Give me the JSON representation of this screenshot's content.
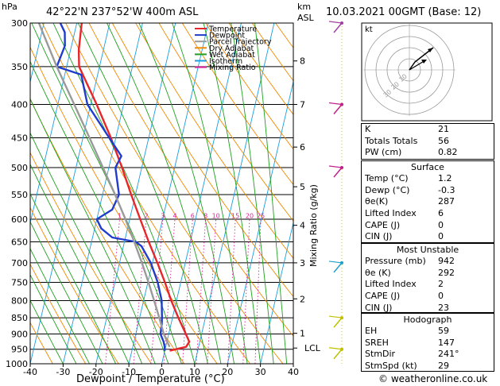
{
  "header": {
    "left_axis_unit": "hPa",
    "location": "42°22'N  237°52'W  400m  ASL",
    "km_label": "km",
    "asl_label": "ASL",
    "datetime": "10.03.2021  00GMT  (Base: 12)"
  },
  "footer": {
    "credit": "© weatheronline.co.uk"
  },
  "hodograph": {
    "unit": "kt",
    "ring_labels": [
      "10",
      "20",
      "30"
    ]
  },
  "chart_data": {
    "type": "line",
    "title": "",
    "xlabel": "Dewpoint / Temperature (°C)",
    "ylabel": "",
    "right_label": "Mixing Ratio (g/kg)",
    "xlim": [
      -40,
      40
    ],
    "x_ticks": [
      -40,
      -30,
      -20,
      -10,
      0,
      10,
      20,
      30,
      40
    ],
    "pressure_levels": [
      300,
      350,
      400,
      450,
      500,
      550,
      600,
      650,
      700,
      750,
      800,
      850,
      900,
      950,
      1000
    ],
    "km_ticks": [
      {
        "km": "8",
        "p": 343
      },
      {
        "km": "7",
        "p": 400
      },
      {
        "km": "6",
        "p": 465
      },
      {
        "km": "5",
        "p": 535
      },
      {
        "km": "4",
        "p": 613
      },
      {
        "km": "3",
        "p": 700
      },
      {
        "km": "2",
        "p": 795
      },
      {
        "km": "1",
        "p": 898
      }
    ],
    "lcl": {
      "label": "LCL",
      "p": 946
    },
    "mixing_ratio_labels": [
      "1",
      "2",
      "3",
      "4",
      "6",
      "8",
      "10",
      "15",
      "20",
      "25"
    ],
    "mixing_ratio_values": [
      1,
      2,
      3,
      4,
      6,
      8,
      10,
      15,
      20,
      25
    ],
    "legend": [
      {
        "name": "Temperature",
        "color": "#e8262a"
      },
      {
        "name": "Dewpoint",
        "color": "#1f3ccc"
      },
      {
        "name": "Parcel Trajectory",
        "color": "#9a9a9a"
      },
      {
        "name": "Dry Adiabat",
        "color": "#f08a00"
      },
      {
        "name": "Wet Adiabat",
        "color": "#1fa01f"
      },
      {
        "name": "Isotherm",
        "color": "#1a9ee0"
      },
      {
        "name": "Mixing Ratio",
        "color": "#e0209a"
      }
    ],
    "series": [
      {
        "name": "Temperature",
        "color": "#e8262a",
        "points": [
          {
            "p": 955,
            "t": 1.5
          },
          {
            "p": 942,
            "t": 6.2
          },
          {
            "p": 925,
            "t": 6.8
          },
          {
            "p": 900,
            "t": 5.2
          },
          {
            "p": 850,
            "t": 1.8
          },
          {
            "p": 800,
            "t": -1.6
          },
          {
            "p": 750,
            "t": -4.8
          },
          {
            "p": 700,
            "t": -8.5
          },
          {
            "p": 650,
            "t": -12.6
          },
          {
            "p": 600,
            "t": -16.8
          },
          {
            "p": 550,
            "t": -21.3
          },
          {
            "p": 500,
            "t": -26.0
          },
          {
            "p": 450,
            "t": -31.5
          },
          {
            "p": 400,
            "t": -38.2
          },
          {
            "p": 350,
            "t": -46.2
          },
          {
            "p": 330,
            "t": -47.5
          },
          {
            "p": 300,
            "t": -48.5
          }
        ]
      },
      {
        "name": "Dewpoint",
        "color": "#1f3ccc",
        "points": [
          {
            "p": 955,
            "t": 0.0
          },
          {
            "p": 942,
            "t": -0.3
          },
          {
            "p": 925,
            "t": -1.0
          },
          {
            "p": 900,
            "t": -2.5
          },
          {
            "p": 870,
            "t": -2.8
          },
          {
            "p": 850,
            "t": -3.2
          },
          {
            "p": 800,
            "t": -4.5
          },
          {
            "p": 750,
            "t": -7.0
          },
          {
            "p": 700,
            "t": -10.5
          },
          {
            "p": 660,
            "t": -14.5
          },
          {
            "p": 650,
            "t": -16.5
          },
          {
            "p": 640,
            "t": -24.0
          },
          {
            "p": 620,
            "t": -28.0
          },
          {
            "p": 600,
            "t": -30.0
          },
          {
            "p": 580,
            "t": -26.0
          },
          {
            "p": 550,
            "t": -25.0
          },
          {
            "p": 500,
            "t": -28.0
          },
          {
            "p": 480,
            "t": -27.0
          },
          {
            "p": 450,
            "t": -32.0
          },
          {
            "p": 400,
            "t": -41.0
          },
          {
            "p": 360,
            "t": -45.0
          },
          {
            "p": 350,
            "t": -53.0
          },
          {
            "p": 325,
            "t": -52.0
          },
          {
            "p": 310,
            "t": -53.0
          },
          {
            "p": 300,
            "t": -55.0
          }
        ]
      },
      {
        "name": "Parcel Trajectory",
        "color": "#9a9a9a",
        "points": [
          {
            "p": 942,
            "t": 1.2
          },
          {
            "p": 900,
            "t": -1.5
          },
          {
            "p": 850,
            "t": -4.0
          },
          {
            "p": 800,
            "t": -6.8
          },
          {
            "p": 750,
            "t": -9.8
          },
          {
            "p": 700,
            "t": -13.2
          },
          {
            "p": 650,
            "t": -17.0
          },
          {
            "p": 600,
            "t": -21.3
          },
          {
            "p": 550,
            "t": -26.2
          },
          {
            "p": 500,
            "t": -31.8
          },
          {
            "p": 450,
            "t": -38.0
          },
          {
            "p": 400,
            "t": -45.0
          },
          {
            "p": 350,
            "t": -53.0
          },
          {
            "p": 300,
            "t": -61.5
          }
        ]
      }
    ],
    "wind_barbs": [
      {
        "p": 300,
        "color": "#a040a0"
      },
      {
        "p": 400,
        "color": "#c0208a"
      },
      {
        "p": 500,
        "color": "#c0208a"
      },
      {
        "p": 700,
        "color": "#20a0c8"
      },
      {
        "p": 850,
        "color": "#c0c000"
      },
      {
        "p": 950,
        "color": "#c0c000"
      }
    ]
  },
  "indices": [
    {
      "label": "K",
      "value": "21"
    },
    {
      "label": "Totals Totals",
      "value": "56"
    },
    {
      "label": "PW (cm)",
      "value": "0.82"
    }
  ],
  "surface": {
    "title": "Surface",
    "rows": [
      {
        "label": "Temp (°C)",
        "value": "1.2"
      },
      {
        "label": "Dewp (°C)",
        "value": "-0.3"
      },
      {
        "label": "θe(K)",
        "value": "287"
      },
      {
        "label": "Lifted Index",
        "value": "6"
      },
      {
        "label": "CAPE (J)",
        "value": "0"
      },
      {
        "label": "CIN (J)",
        "value": "0"
      }
    ]
  },
  "most_unstable": {
    "title": "Most Unstable",
    "rows": [
      {
        "label": "Pressure (mb)",
        "value": "942"
      },
      {
        "label": "θe (K)",
        "value": "292"
      },
      {
        "label": "Lifted Index",
        "value": "2"
      },
      {
        "label": "CAPE (J)",
        "value": "0"
      },
      {
        "label": "CIN (J)",
        "value": "23"
      }
    ]
  },
  "hodograph_table": {
    "title": "Hodograph",
    "rows": [
      {
        "label": "EH",
        "value": "59"
      },
      {
        "label": "SREH",
        "value": "147"
      },
      {
        "label": "StmDir",
        "value": "241°"
      },
      {
        "label": "StmSpd (kt)",
        "value": "29"
      }
    ]
  }
}
